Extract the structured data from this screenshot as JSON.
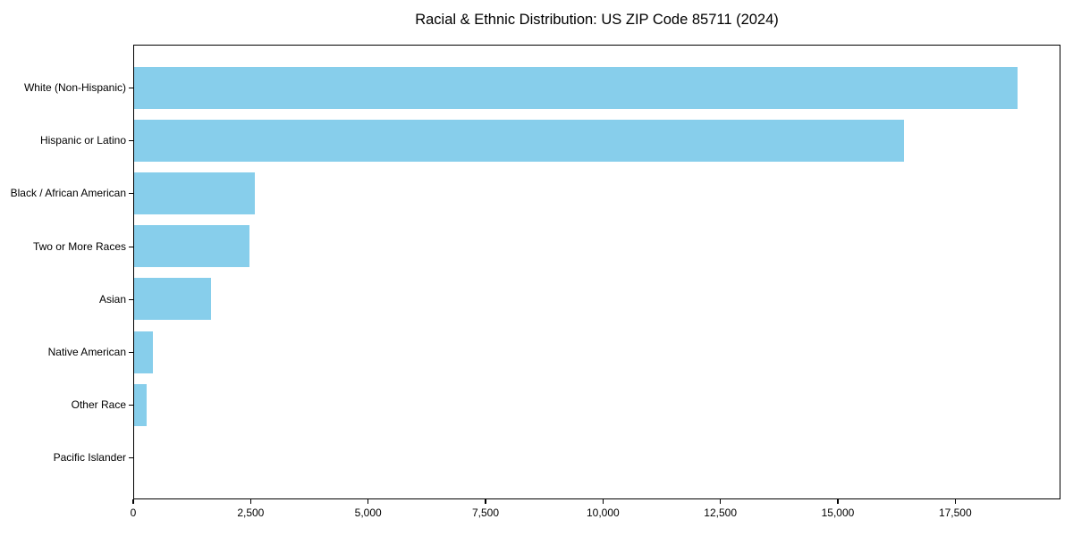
{
  "title": "Racial & Ethnic Distribution: US ZIP Code 85711 (2024)",
  "colors": {
    "bar": "#87CEEB",
    "spine": "#000000",
    "text": "#000000",
    "background": "#ffffff"
  },
  "chart_data": {
    "type": "bar",
    "orientation": "horizontal",
    "title": "Racial & Ethnic Distribution: US ZIP Code 85711 (2024)",
    "xlabel": "",
    "ylabel": "",
    "categories": [
      "White (Non-Hispanic)",
      "Hispanic or Latino",
      "Black / African American",
      "Two or More Races",
      "Asian",
      "Native American",
      "Other Race",
      "Pacific Islander"
    ],
    "values": [
      18800,
      16380,
      2560,
      2460,
      1640,
      400,
      260,
      0
    ],
    "bar_color": "#87CEEB",
    "xlim": [
      0,
      19740
    ],
    "x_ticks": [
      0,
      2500,
      5000,
      7500,
      10000,
      12500,
      15000,
      17500
    ],
    "x_tick_labels": [
      "0",
      "2,500",
      "5,000",
      "7,500",
      "10,000",
      "12,500",
      "15,000",
      "17,500"
    ],
    "grid": false,
    "legend": null
  }
}
